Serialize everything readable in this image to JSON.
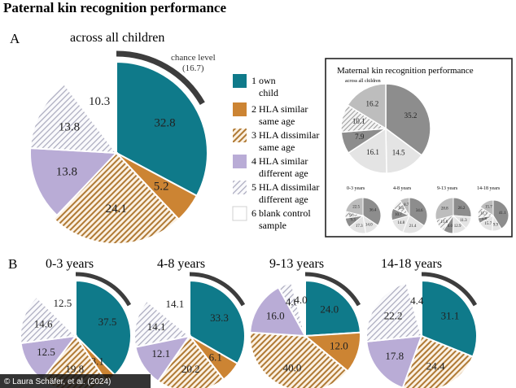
{
  "header": {
    "title": "Paternal kin recognition performance",
    "section_a": "A",
    "section_a_caption": "across all children",
    "section_b": "B",
    "chance_label": "chance level",
    "chance_value": "(16.7)"
  },
  "legend": {
    "items": [
      {
        "key": "own",
        "lines": [
          "1 own",
          "child"
        ]
      },
      {
        "key": "hla_sim_same",
        "lines": [
          "2 HLA similar",
          "same age"
        ]
      },
      {
        "key": "hla_dis_same",
        "lines": [
          "3 HLA dissimilar",
          "same age"
        ]
      },
      {
        "key": "hla_sim_diff",
        "lines": [
          "4 HLA similar",
          "different age"
        ]
      },
      {
        "key": "hla_dis_diff",
        "lines": [
          "5 HLA dissimilar",
          "different age"
        ]
      },
      {
        "key": "blank",
        "lines": [
          "6 blank control",
          "sample"
        ]
      }
    ]
  },
  "inset": {
    "title": "Maternal kin recognition performance",
    "subtitle": "across all children",
    "age_labels": [
      "0-3 years",
      "4-8 years",
      "9-13 years",
      "14-18 years"
    ]
  },
  "credit": "© Laura Schäfer, et al. (2024)",
  "colors": {
    "own": "#0f7a8a",
    "hla_sim_same": "#cc8433",
    "hla_dis_same_stripe": "#b07a35",
    "hla_sim_diff": "#b9acd6",
    "hla_dis_diff_stripe": "#a9a9bd",
    "chance_arc": "#3d3d3d",
    "inset_dark": "#8d8d8d",
    "inset_mid": "#bdbdbd",
    "inset_light": "#e4e4e4"
  },
  "chart_data": [
    {
      "type": "pie",
      "id": "all",
      "title": "across all children",
      "categories": [
        "1 own child",
        "2 HLA similar same age",
        "3 HLA dissimilar same age",
        "4 HLA similar different age",
        "5 HLA dissimilar different age",
        "6 blank control sample"
      ],
      "values": [
        32.8,
        5.2,
        24.1,
        13.8,
        13.8,
        10.3
      ],
      "labels": [
        "32.8",
        "5.2",
        "24.1",
        "13.8",
        "13.8",
        "10.3"
      ],
      "chance_level": 16.7
    },
    {
      "type": "pie",
      "id": "age0_3",
      "title": "0-3 years",
      "categories": [
        "1 own child",
        "2 HLA similar same age",
        "3 HLA dissimilar same age",
        "4 HLA similar different age",
        "5 HLA dissimilar different age",
        "6 blank control sample"
      ],
      "values": [
        37.5,
        3.1,
        19.8,
        12.5,
        14.6,
        12.5
      ],
      "labels": [
        "37.5",
        "3.1",
        "19.8",
        "12.5",
        "14.6",
        "12.5"
      ]
    },
    {
      "type": "pie",
      "id": "age4_8",
      "title": "4-8 years",
      "categories": [
        "1 own child",
        "2 HLA similar same age",
        "3 HLA dissimilar same age",
        "4 HLA similar different age",
        "5 HLA dissimilar different age",
        "6 blank control sample"
      ],
      "values": [
        33.3,
        6.1,
        20.2,
        12.1,
        14.1,
        14.1
      ],
      "labels": [
        "33.3",
        "6.1",
        "20.2",
        "12.1",
        "14.1",
        "14.1"
      ]
    },
    {
      "type": "pie",
      "id": "age9_13",
      "title": "9-13 years",
      "categories": [
        "1 own child",
        "2 HLA similar same age",
        "3 HLA dissimilar same age",
        "4 HLA similar different age",
        "5 HLA dissimilar different age",
        "6 blank control sample"
      ],
      "values": [
        24.0,
        12.0,
        40.0,
        16.0,
        4.0,
        4.0
      ],
      "labels": [
        "24.0",
        "12.0",
        "40.0",
        "16.0",
        "4.0",
        "4.0"
      ]
    },
    {
      "type": "pie",
      "id": "age14_18",
      "title": "14-18 years",
      "categories": [
        "1 own child",
        "2 HLA similar same age",
        "3 HLA dissimilar same age",
        "4 HLA similar different age",
        "5 HLA dissimilar different age",
        "6 blank control sample"
      ],
      "values": [
        31.1,
        0,
        24.4,
        17.8,
        22.2,
        4.4
      ],
      "labels": [
        "31.1",
        "",
        "24.4",
        "17.8",
        "22.2",
        "4.4"
      ]
    },
    {
      "type": "pie",
      "id": "mat_all",
      "title": "Maternal kin recognition performance - across all children",
      "values": [
        35.2,
        14.5,
        16.1,
        7.9,
        10.1,
        16.2
      ],
      "labels": [
        "35.2",
        "14.5",
        "16.1",
        "7.9",
        "10.1",
        "16.2"
      ]
    },
    {
      "type": "pie",
      "id": "mat_0_3",
      "title": "0-3 years",
      "values": [
        36.4,
        14.0,
        17.3,
        9.3,
        6.5,
        22.5
      ],
      "labels": [
        "36.4",
        "14.0",
        "17.3",
        "9.3",
        "6.5",
        "22.5"
      ]
    },
    {
      "type": "pie",
      "id": "mat_4_8",
      "title": "4-8 years",
      "values": [
        34.6,
        21.4,
        14.8,
        10.7,
        9.8,
        8.7
      ],
      "labels": [
        "34.6",
        "21.4",
        "14.8",
        "10.7",
        "9.8",
        "8.7"
      ]
    },
    {
      "type": "pie",
      "id": "mat_9_13",
      "title": "9-13 years",
      "values": [
        26.2,
        11.3,
        12.9,
        9.0,
        11.8,
        28.8
      ],
      "labels": [
        "26.2",
        "11.3",
        "12.9",
        "9.0",
        "11.8",
        "28.8"
      ]
    },
    {
      "type": "pie",
      "id": "mat_14_18",
      "title": "14-18 years",
      "values": [
        41.1,
        9.9,
        15.7,
        5.8,
        11.7,
        15.7
      ],
      "labels": [
        "41.1",
        "9.9",
        "15.7",
        "5.8",
        "11.7",
        "15.7"
      ]
    }
  ]
}
